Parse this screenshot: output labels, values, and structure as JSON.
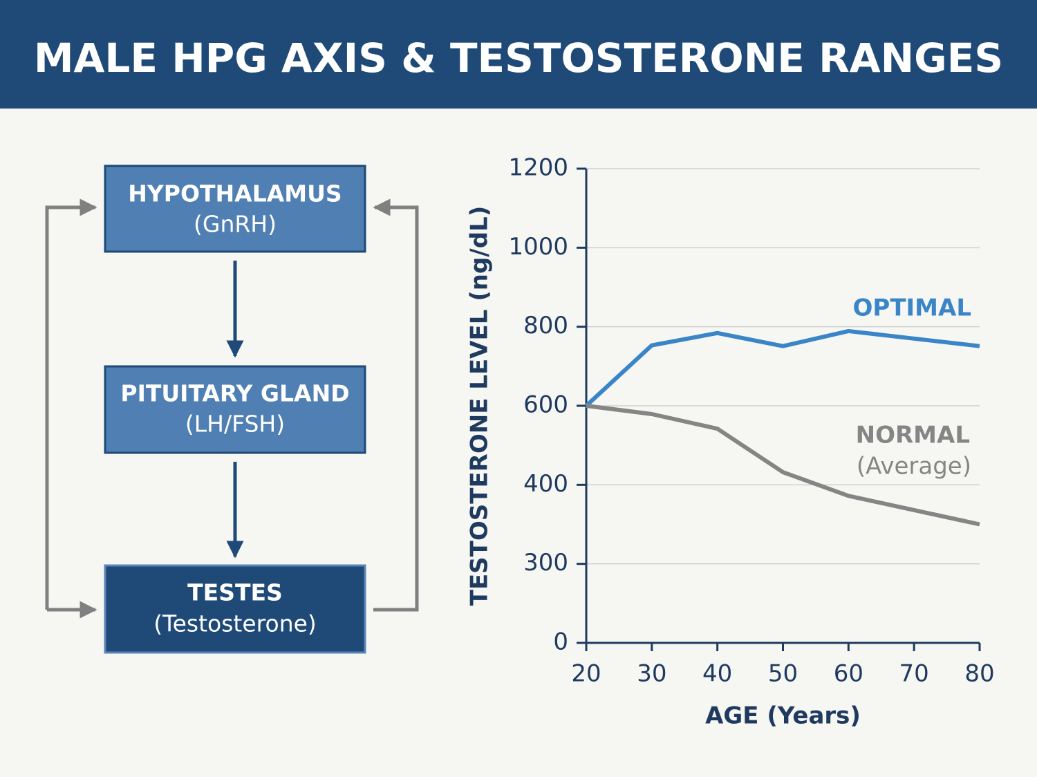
{
  "title": "MALE HPG AXIS & TESTOSTERONE RANGES",
  "diagram": {
    "nodes": [
      {
        "label": "HYPOTHALAMUS",
        "sublabel": "(GnRH)"
      },
      {
        "label": "PITUITARY GLAND",
        "sublabel": "(LH/FSH)"
      },
      {
        "label": "TESTES",
        "sublabel": "(Testosterone)"
      }
    ]
  },
  "chart_data": {
    "type": "line",
    "x": [
      20,
      30,
      40,
      50,
      60,
      70,
      80
    ],
    "xlim": [
      20,
      80
    ],
    "xticks": [
      20,
      30,
      40,
      50,
      60,
      70,
      80
    ],
    "ylim": [
      0,
      1200
    ],
    "yticks": [
      0,
      300,
      400,
      600,
      800,
      1000,
      1200
    ],
    "x_label": "AGE (Years)",
    "y_label": "TESTOSTERONE LEVEL (ng/dL)",
    "grid": true,
    "series": [
      {
        "name": "OPTIMAL",
        "color": "#3a85c8",
        "values": [
          600,
          753,
          784,
          751,
          789,
          770,
          751
        ]
      },
      {
        "name": "NORMAL",
        "subname": "(Average)",
        "color": "#858585",
        "values": [
          600,
          579,
          542,
          432,
          386,
          368,
          350
        ]
      }
    ]
  }
}
